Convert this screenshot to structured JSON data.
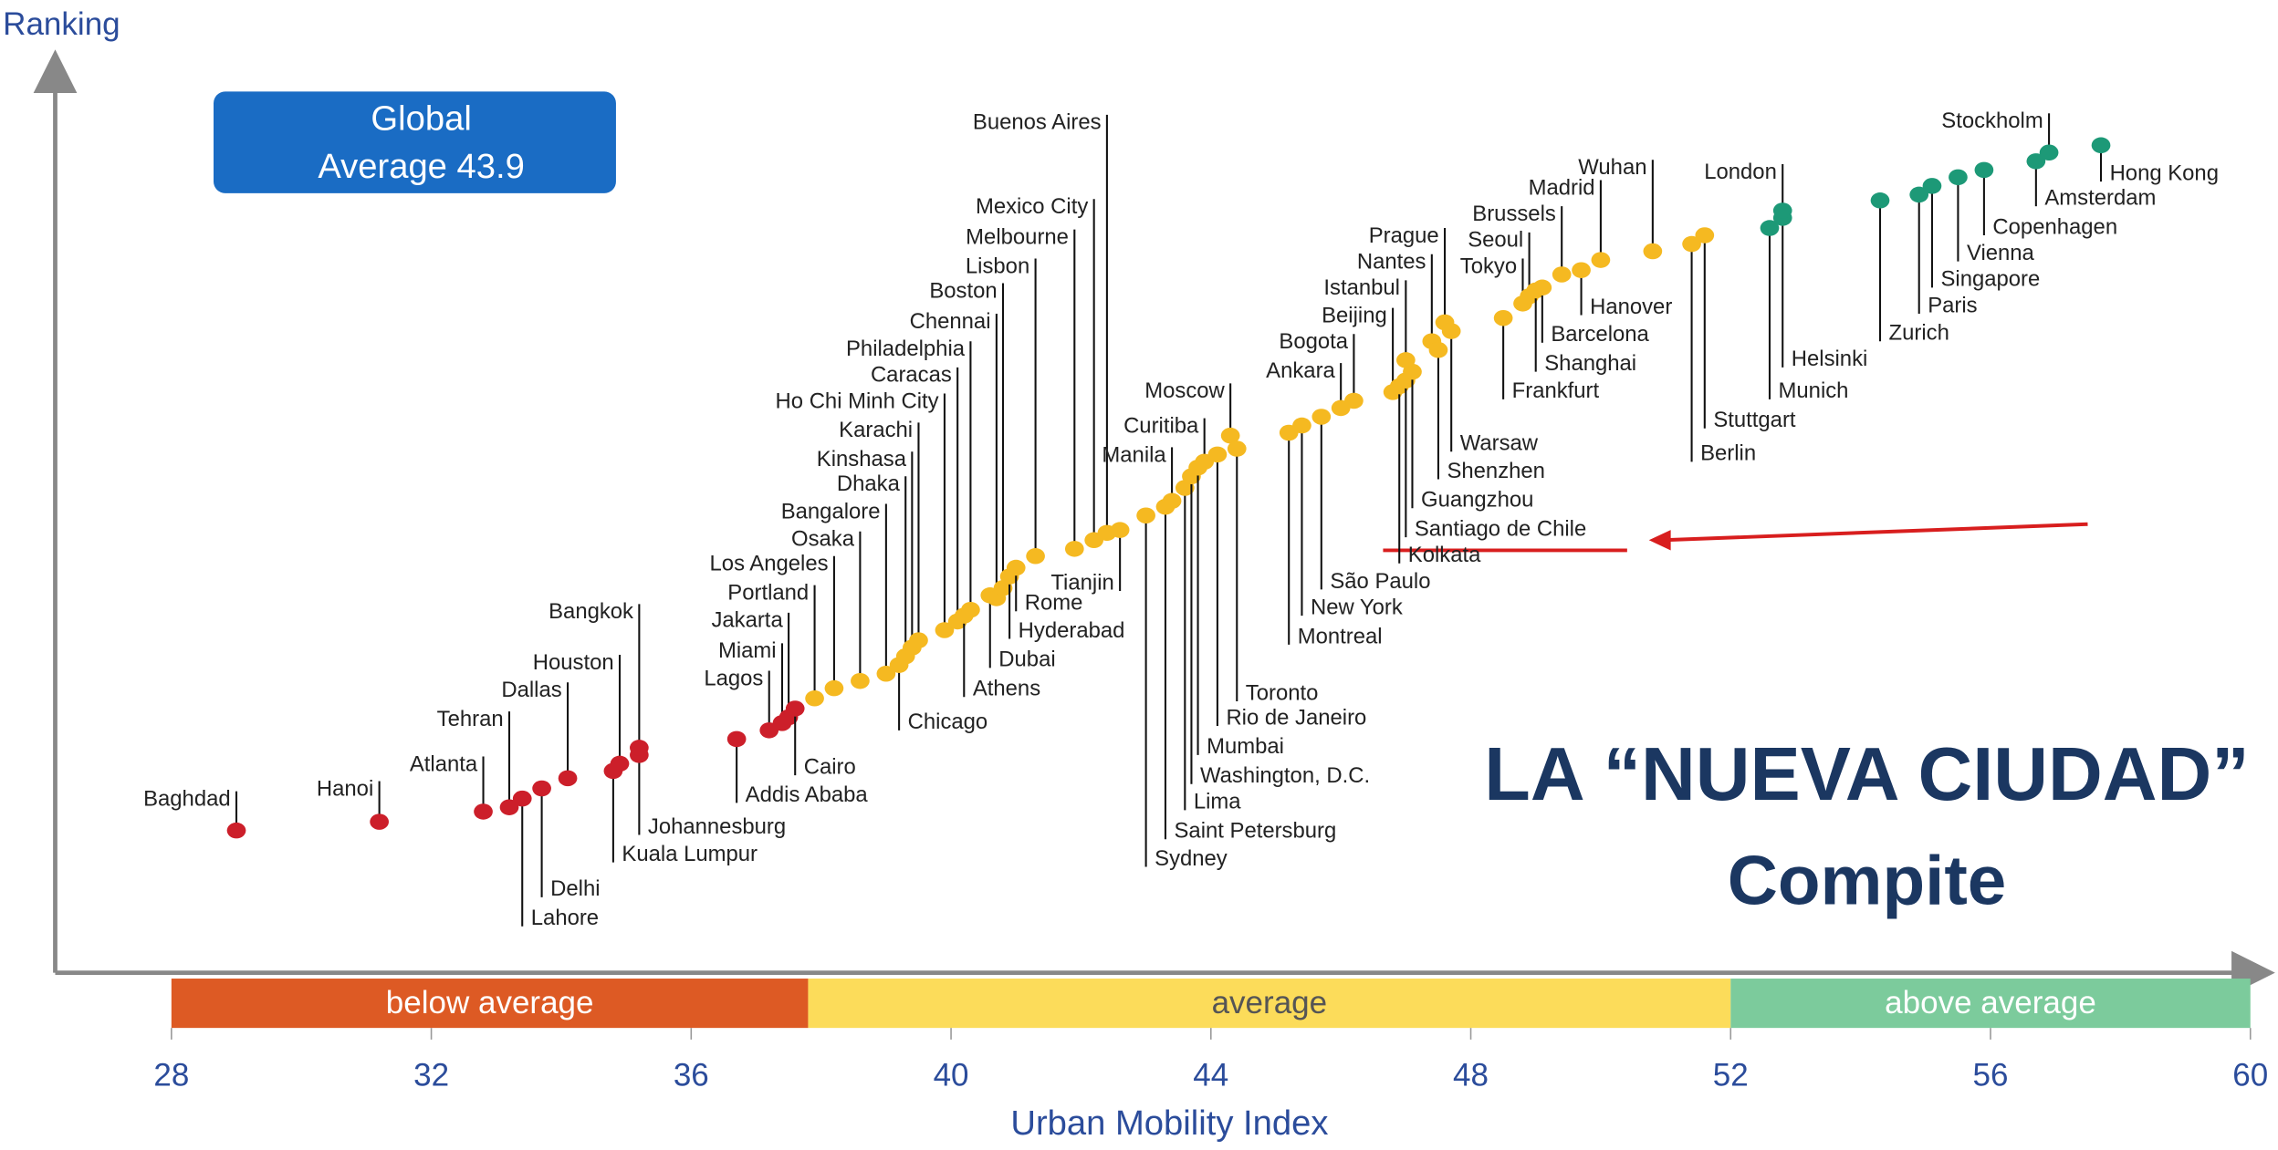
{
  "chart_data": {
    "type": "scatter",
    "y_axis_label": "Ranking",
    "x_axis_label": "Urban Mobility Index",
    "xlim": [
      28,
      60
    ],
    "xticks": [
      28,
      32,
      36,
      40,
      44,
      48,
      52,
      56,
      60
    ],
    "ylim": [
      0,
      63
    ],
    "annotation": [
      "Global",
      "Average 43.9"
    ],
    "overlay_text": [
      "LA “NUEVA CIUDAD”",
      "Compite"
    ],
    "series": [
      {
        "name": "below average",
        "color": "#cc1f2a",
        "band_color": "#dd5a24",
        "range": [
          28,
          37.8
        ],
        "labels": [
          "Baghdad",
          "Hanoi",
          "Atlanta",
          "Tehran",
          "Lahore",
          "Delhi",
          "Dallas",
          "Kuala Lumpur",
          "Houston",
          "Johannesburg",
          "Bangkok",
          "Addis Ababa",
          "Lagos",
          "Miami",
          "Jakarta",
          "Cairo"
        ],
        "x": [
          29.0,
          31.2,
          32.8,
          33.2,
          33.4,
          33.7,
          34.1,
          34.8,
          34.9,
          35.2,
          35.2,
          36.7,
          37.2,
          37.4,
          37.5,
          37.6
        ],
        "values": [
          9.8,
          10.4,
          11.1,
          11.4,
          12.0,
          12.7,
          13.4,
          13.9,
          14.4,
          15.0,
          15.5,
          16.1,
          16.7,
          17.2,
          17.6,
          18.2
        ]
      },
      {
        "name": "average",
        "color": "#f5b921",
        "band_color": "#fcdc5a",
        "range": [
          37.8,
          52
        ],
        "labels": [
          "Portland",
          "Los Angeles",
          "Osaka",
          "Bangalore",
          "Chicago",
          "Dhaka",
          "Kinshasa",
          "Karachi",
          "Ho Chi Minh City",
          "Caracas",
          "Athens",
          "Philadelphia",
          "Dubai",
          "Chennai",
          "Boston",
          "Hyderabad",
          "Rome",
          "Lisbon",
          "Melbourne",
          "Mexico City",
          "Buenos Aires",
          "Tianjin",
          "Sydney",
          "Saint Petersburg",
          "Manila",
          "Lima",
          "Washington, D.C.",
          "Mumbai",
          "Curitiba",
          "Rio de Janeiro",
          "Moscow",
          "Toronto",
          "Montreal",
          "New York",
          "São Paulo",
          "Ankara",
          "Bogota",
          "Beijing",
          "Kolkata",
          "Santiago de Chile",
          "Guangzhou",
          "Istanbul",
          "Nantes",
          "Shenzhen",
          "Prague",
          "Warsaw",
          "Frankfurt",
          "Tokyo",
          "Seoul",
          "Shanghai",
          "Barcelona",
          "Brussels",
          "Hanover",
          "Madrid",
          "Wuhan",
          "Berlin",
          "Stuttgart"
        ],
        "x": [
          37.9,
          38.2,
          38.6,
          39.0,
          39.2,
          39.3,
          39.4,
          39.5,
          39.9,
          40.1,
          40.2,
          40.3,
          40.6,
          40.7,
          40.8,
          40.9,
          41.0,
          41.3,
          41.9,
          42.2,
          42.4,
          42.6,
          43.0,
          43.3,
          43.4,
          43.6,
          43.7,
          43.8,
          43.9,
          44.1,
          44.3,
          44.4,
          45.2,
          45.4,
          45.7,
          46.0,
          46.2,
          46.8,
          46.9,
          47.0,
          47.1,
          47.0,
          47.4,
          47.5,
          47.6,
          47.7,
          48.5,
          48.8,
          48.9,
          49.0,
          49.1,
          49.4,
          49.7,
          50.0,
          50.8,
          51.4,
          51.6
        ],
        "values": [
          18.9,
          19.6,
          20.1,
          20.6,
          21.2,
          21.8,
          22.4,
          22.9,
          23.6,
          24.2,
          24.6,
          25.0,
          26.0,
          25.8,
          26.5,
          27.3,
          27.9,
          28.7,
          29.2,
          29.8,
          30.3,
          30.5,
          31.5,
          32.1,
          32.5,
          33.4,
          34.2,
          34.8,
          35.2,
          35.7,
          37.0,
          36.1,
          37.2,
          37.7,
          38.3,
          38.9,
          39.4,
          40.0,
          40.4,
          40.8,
          41.4,
          42.2,
          43.5,
          42.9,
          44.8,
          44.2,
          45.1,
          46.1,
          46.6,
          47.0,
          47.2,
          48.1,
          48.4,
          49.1,
          49.7,
          50.2,
          50.8
        ]
      },
      {
        "name": "above average",
        "color": "#1d9977",
        "band_color": "#7ccb9c",
        "range": [
          52,
          60
        ],
        "labels": [
          "Munich",
          "Helsinki",
          "London",
          "Zurich",
          "Paris",
          "Singapore",
          "Vienna",
          "Copenhagen",
          "Amsterdam",
          "Stockholm",
          "Hong Kong"
        ],
        "x": [
          52.6,
          52.8,
          52.8,
          54.3,
          54.9,
          55.1,
          55.5,
          55.9,
          56.7,
          56.9,
          57.7
        ],
        "values": [
          51.3,
          52.0,
          52.5,
          53.2,
          53.6,
          54.2,
          54.8,
          55.3,
          55.9,
          56.5,
          57.0
        ]
      }
    ]
  }
}
